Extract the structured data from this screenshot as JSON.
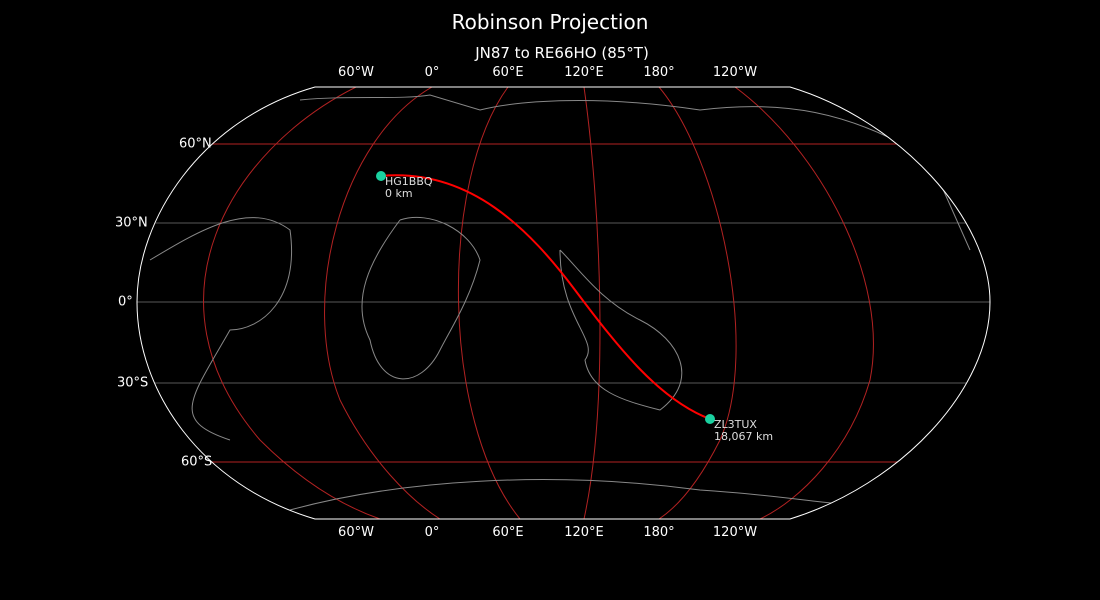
{
  "title": "Robinson Projection",
  "subtitle": "JN87 to RE66HO (85°T)",
  "top_labels": [
    "60°W",
    "0°",
    "60°E",
    "120°E",
    "180°",
    "120°W"
  ],
  "bottom_labels": [
    "60°W",
    "0°",
    "60°E",
    "120°E",
    "180°",
    "120°W"
  ],
  "lat_labels": [
    "60°N",
    "30°N",
    "0°",
    "30°S",
    "60°S"
  ],
  "start": {
    "call": "HG1BBQ",
    "dist": "0 km"
  },
  "end": {
    "call": "ZL3TUX",
    "dist": "18,067 km"
  },
  "colors": {
    "path": "#ff0000",
    "grid": "#b22222",
    "marker": "#1ad1a0",
    "coast": "#888888"
  }
}
